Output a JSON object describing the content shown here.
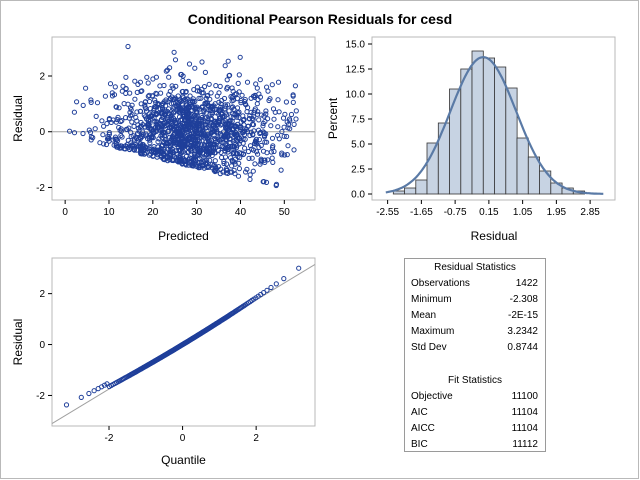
{
  "title": "Conditional Pearson Residuals for cesd",
  "colors": {
    "points": "#1f3f9a",
    "bars": "#c7d3e3",
    "curve": "#5a7aa6",
    "refline": "#a0a0a0"
  },
  "chart_data": [
    {
      "type": "scatter",
      "xlabel": "Predicted",
      "ylabel": "Residual",
      "xlim": [
        -3,
        57
      ],
      "ylim": [
        -2.45,
        3.4
      ],
      "xticks": [
        "0",
        "10",
        "20",
        "30",
        "40",
        "50"
      ],
      "yticks": [
        "-2",
        "0",
        "2"
      ],
      "reference_line_y": 0,
      "n_points": 1422
    },
    {
      "type": "bar",
      "xlabel": "Residual",
      "ylabel": "Percent",
      "xticks": [
        "-2.55",
        "-1.65",
        "-0.75",
        "0.15",
        "1.05",
        "1.95",
        "2.85"
      ],
      "yticks": [
        "0.0",
        "2.5",
        "5.0",
        "7.5",
        "10.0",
        "12.5",
        "15.0"
      ],
      "bin_width": 0.3,
      "first_bin_center": -2.25,
      "values": [
        0.3,
        0.6,
        1.4,
        5.1,
        7.1,
        10.5,
        12.5,
        14.3,
        13.6,
        12.7,
        10.6,
        5.6,
        3.7,
        2.3,
        1.1,
        0.6,
        0.3
      ],
      "ylim": [
        0,
        15.5
      ],
      "xlim": [
        -2.7,
        3.3
      ],
      "normal_curve": {
        "mean": 0.0,
        "sd": 0.8744
      }
    },
    {
      "type": "scatter",
      "xlabel": "Quantile",
      "ylabel": "Residual",
      "xlim": [
        -3.55,
        3.6
      ],
      "ylim": [
        -3.2,
        3.4
      ],
      "xticks": [
        "-2",
        "0",
        "2"
      ],
      "yticks": [
        "-2",
        "0",
        "2"
      ],
      "reference_line": {
        "intercept": 0.0,
        "slope": 0.8744
      }
    }
  ],
  "residual_statistics": {
    "title": "Residual Statistics",
    "rows": [
      {
        "label": "Observations",
        "value": "1422"
      },
      {
        "label": "Minimum",
        "value": "-2.308"
      },
      {
        "label": "Mean",
        "value": "-2E-15"
      },
      {
        "label": "Maximum",
        "value": "3.2342"
      },
      {
        "label": "Std Dev",
        "value": "0.8744"
      }
    ]
  },
  "fit_statistics": {
    "title": "Fit Statistics",
    "rows": [
      {
        "label": "Objective",
        "value": "11100"
      },
      {
        "label": "AIC",
        "value": "11104"
      },
      {
        "label": "AICC",
        "value": "11104"
      },
      {
        "label": "BIC",
        "value": "11112"
      }
    ]
  }
}
